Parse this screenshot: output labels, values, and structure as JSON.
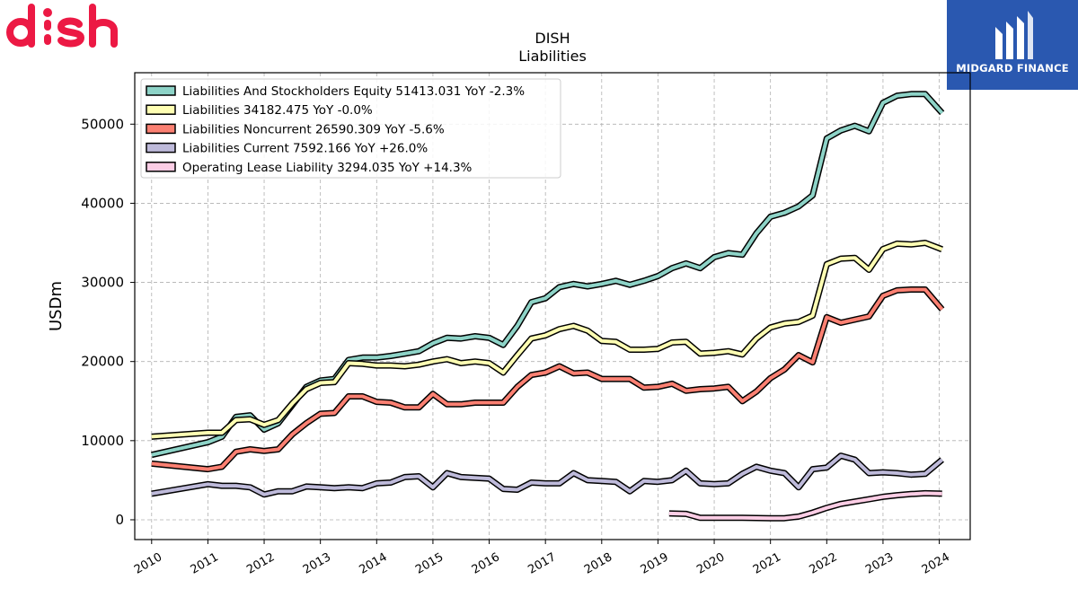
{
  "logo": {
    "name": "dish",
    "color": "#ec1944"
  },
  "brand": {
    "text": "MIDGARD FINANCE",
    "color": "#2a58b0"
  },
  "chart_data": {
    "type": "line",
    "title": "DISH",
    "subtitle": "Liabilities",
    "ylabel": "USDm",
    "xlabel": "",
    "xlim": [
      2009.7,
      2024.55
    ],
    "ylim": [
      -2500,
      56500
    ],
    "yticks": [
      0,
      10000,
      20000,
      30000,
      40000,
      50000
    ],
    "ytick_labels": [
      "0",
      "10000",
      "20000",
      "30000",
      "40000",
      "50000"
    ],
    "xticks": [
      2010,
      2011,
      2012,
      2013,
      2014,
      2015,
      2016,
      2017,
      2018,
      2019,
      2020,
      2021,
      2022,
      2023,
      2024
    ],
    "xtick_labels": [
      "2010",
      "2011",
      "2012",
      "2013",
      "2014",
      "2015",
      "2016",
      "2017",
      "2018",
      "2019",
      "2020",
      "2021",
      "2022",
      "2023",
      "2024"
    ],
    "grid": true,
    "legend_position": "top-left",
    "series": [
      {
        "name": "Liabilities And Stockholders Equity",
        "legend": "Liabilities And Stockholders Equity  51413.031 YoY -2.3%",
        "color": "#8dd3c7",
        "points": [
          [
            2010.0,
            8200
          ],
          [
            2011.0,
            9800
          ],
          [
            2011.25,
            10500
          ],
          [
            2011.5,
            13000
          ],
          [
            2011.75,
            13200
          ],
          [
            2012.0,
            11400
          ],
          [
            2012.25,
            12200
          ],
          [
            2012.5,
            14500
          ],
          [
            2012.75,
            16800
          ],
          [
            2013.0,
            17600
          ],
          [
            2013.25,
            17800
          ],
          [
            2013.5,
            20200
          ],
          [
            2013.75,
            20500
          ],
          [
            2014.0,
            20500
          ],
          [
            2014.25,
            20700
          ],
          [
            2014.5,
            21000
          ],
          [
            2014.75,
            21300
          ],
          [
            2015.0,
            22300
          ],
          [
            2015.25,
            23000
          ],
          [
            2015.5,
            22900
          ],
          [
            2015.75,
            23200
          ],
          [
            2016.0,
            23000
          ],
          [
            2016.25,
            22100
          ],
          [
            2016.5,
            24500
          ],
          [
            2016.75,
            27500
          ],
          [
            2017.0,
            28000
          ],
          [
            2017.25,
            29400
          ],
          [
            2017.5,
            29800
          ],
          [
            2017.75,
            29500
          ],
          [
            2018.0,
            29800
          ],
          [
            2018.25,
            30200
          ],
          [
            2018.5,
            29700
          ],
          [
            2018.75,
            30200
          ],
          [
            2019.0,
            30800
          ],
          [
            2019.25,
            31800
          ],
          [
            2019.5,
            32400
          ],
          [
            2019.75,
            31800
          ],
          [
            2020.0,
            33200
          ],
          [
            2020.25,
            33700
          ],
          [
            2020.5,
            33500
          ],
          [
            2020.75,
            36200
          ],
          [
            2021.0,
            38300
          ],
          [
            2021.25,
            38800
          ],
          [
            2021.5,
            39600
          ],
          [
            2021.75,
            41000
          ],
          [
            2022.0,
            48200
          ],
          [
            2022.25,
            49200
          ],
          [
            2022.5,
            49800
          ],
          [
            2022.75,
            49100
          ],
          [
            2023.0,
            52700
          ],
          [
            2023.25,
            53600
          ],
          [
            2023.5,
            53800
          ],
          [
            2023.75,
            53800
          ],
          [
            2024.05,
            51413
          ]
        ]
      },
      {
        "name": "Liabilities",
        "legend": "Liabilities  34182.475 YoY -0.0%",
        "color": "#ffffb3",
        "points": [
          [
            2010.0,
            10500
          ],
          [
            2011.0,
            11000
          ],
          [
            2011.25,
            11000
          ],
          [
            2011.5,
            12600
          ],
          [
            2011.75,
            12700
          ],
          [
            2012.0,
            12000
          ],
          [
            2012.25,
            12600
          ],
          [
            2012.5,
            14700
          ],
          [
            2012.75,
            16500
          ],
          [
            2013.0,
            17300
          ],
          [
            2013.25,
            17400
          ],
          [
            2013.5,
            19800
          ],
          [
            2013.75,
            19700
          ],
          [
            2014.0,
            19500
          ],
          [
            2014.25,
            19500
          ],
          [
            2014.5,
            19400
          ],
          [
            2014.75,
            19600
          ],
          [
            2015.0,
            20000
          ],
          [
            2015.25,
            20300
          ],
          [
            2015.5,
            19800
          ],
          [
            2015.75,
            20000
          ],
          [
            2016.0,
            19800
          ],
          [
            2016.25,
            18600
          ],
          [
            2016.5,
            20800
          ],
          [
            2016.75,
            22900
          ],
          [
            2017.0,
            23300
          ],
          [
            2017.25,
            24100
          ],
          [
            2017.5,
            24500
          ],
          [
            2017.75,
            23900
          ],
          [
            2018.0,
            22600
          ],
          [
            2018.25,
            22500
          ],
          [
            2018.5,
            21500
          ],
          [
            2018.75,
            21500
          ],
          [
            2019.0,
            21600
          ],
          [
            2019.25,
            22400
          ],
          [
            2019.5,
            22500
          ],
          [
            2019.75,
            21000
          ],
          [
            2020.0,
            21100
          ],
          [
            2020.25,
            21300
          ],
          [
            2020.5,
            20900
          ],
          [
            2020.75,
            22900
          ],
          [
            2021.0,
            24300
          ],
          [
            2021.25,
            24800
          ],
          [
            2021.5,
            25000
          ],
          [
            2021.75,
            25800
          ],
          [
            2022.0,
            32300
          ],
          [
            2022.25,
            33000
          ],
          [
            2022.5,
            33100
          ],
          [
            2022.75,
            31600
          ],
          [
            2023.0,
            34200
          ],
          [
            2023.25,
            34900
          ],
          [
            2023.5,
            34800
          ],
          [
            2023.75,
            35000
          ],
          [
            2024.05,
            34182
          ]
        ]
      },
      {
        "name": "Liabilities Noncurrent",
        "legend": "Liabilities Noncurrent  26590.309 YoY -5.6%",
        "color": "#fb8072",
        "points": [
          [
            2010.0,
            7100
          ],
          [
            2011.0,
            6400
          ],
          [
            2011.25,
            6700
          ],
          [
            2011.5,
            8600
          ],
          [
            2011.75,
            8900
          ],
          [
            2012.0,
            8700
          ],
          [
            2012.25,
            8900
          ],
          [
            2012.5,
            10800
          ],
          [
            2012.75,
            12200
          ],
          [
            2013.0,
            13400
          ],
          [
            2013.25,
            13500
          ],
          [
            2013.5,
            15600
          ],
          [
            2013.75,
            15600
          ],
          [
            2014.0,
            14900
          ],
          [
            2014.25,
            14800
          ],
          [
            2014.5,
            14200
          ],
          [
            2014.75,
            14200
          ],
          [
            2015.0,
            15900
          ],
          [
            2015.25,
            14600
          ],
          [
            2015.5,
            14600
          ],
          [
            2015.75,
            14800
          ],
          [
            2016.0,
            14800
          ],
          [
            2016.25,
            14800
          ],
          [
            2016.5,
            16800
          ],
          [
            2016.75,
            18300
          ],
          [
            2017.0,
            18600
          ],
          [
            2017.25,
            19400
          ],
          [
            2017.5,
            18500
          ],
          [
            2017.75,
            18600
          ],
          [
            2018.0,
            17800
          ],
          [
            2018.25,
            17800
          ],
          [
            2018.5,
            17800
          ],
          [
            2018.75,
            16700
          ],
          [
            2019.0,
            16800
          ],
          [
            2019.25,
            17200
          ],
          [
            2019.5,
            16300
          ],
          [
            2019.75,
            16500
          ],
          [
            2020.0,
            16600
          ],
          [
            2020.25,
            16800
          ],
          [
            2020.5,
            15000
          ],
          [
            2020.75,
            16200
          ],
          [
            2021.0,
            17900
          ],
          [
            2021.25,
            19000
          ],
          [
            2021.5,
            20800
          ],
          [
            2021.75,
            19900
          ],
          [
            2022.0,
            25600
          ],
          [
            2022.25,
            24900
          ],
          [
            2022.5,
            25300
          ],
          [
            2022.75,
            25700
          ],
          [
            2023.0,
            28300
          ],
          [
            2023.25,
            29000
          ],
          [
            2023.5,
            29100
          ],
          [
            2023.75,
            29100
          ],
          [
            2024.05,
            26590
          ]
        ]
      },
      {
        "name": "Liabilities Current",
        "legend": "Liabilities Current  7592.166 YoY +26.0%",
        "color": "#bebada",
        "points": [
          [
            2010.0,
            3300
          ],
          [
            2011.0,
            4500
          ],
          [
            2011.25,
            4300
          ],
          [
            2011.5,
            4300
          ],
          [
            2011.75,
            4100
          ],
          [
            2012.0,
            3200
          ],
          [
            2012.25,
            3600
          ],
          [
            2012.5,
            3600
          ],
          [
            2012.75,
            4200
          ],
          [
            2013.0,
            4100
          ],
          [
            2013.25,
            4000
          ],
          [
            2013.5,
            4100
          ],
          [
            2013.75,
            4000
          ],
          [
            2014.0,
            4600
          ],
          [
            2014.25,
            4700
          ],
          [
            2014.5,
            5400
          ],
          [
            2014.75,
            5500
          ],
          [
            2015.0,
            4100
          ],
          [
            2015.25,
            5900
          ],
          [
            2015.5,
            5400
          ],
          [
            2015.75,
            5300
          ],
          [
            2016.0,
            5200
          ],
          [
            2016.25,
            3900
          ],
          [
            2016.5,
            3800
          ],
          [
            2016.75,
            4700
          ],
          [
            2017.0,
            4600
          ],
          [
            2017.25,
            4600
          ],
          [
            2017.5,
            5900
          ],
          [
            2017.75,
            5000
          ],
          [
            2018.0,
            4900
          ],
          [
            2018.25,
            4800
          ],
          [
            2018.5,
            3600
          ],
          [
            2018.75,
            4900
          ],
          [
            2019.0,
            4800
          ],
          [
            2019.25,
            5000
          ],
          [
            2019.5,
            6200
          ],
          [
            2019.75,
            4600
          ],
          [
            2020.0,
            4500
          ],
          [
            2020.25,
            4600
          ],
          [
            2020.5,
            5800
          ],
          [
            2020.75,
            6700
          ],
          [
            2021.0,
            6200
          ],
          [
            2021.25,
            5900
          ],
          [
            2021.5,
            4100
          ],
          [
            2021.75,
            6400
          ],
          [
            2022.0,
            6600
          ],
          [
            2022.25,
            8100
          ],
          [
            2022.5,
            7600
          ],
          [
            2022.75,
            5900
          ],
          [
            2023.0,
            6000
          ],
          [
            2023.25,
            5900
          ],
          [
            2023.5,
            5700
          ],
          [
            2023.75,
            5800
          ],
          [
            2024.05,
            7592
          ]
        ]
      },
      {
        "name": "Operating Lease Liability",
        "legend": "Operating Lease Liability  3294.035 YoY +14.3%",
        "color": "#fccde5",
        "points": [
          [
            2019.2,
            800
          ],
          [
            2019.5,
            750
          ],
          [
            2019.75,
            250
          ],
          [
            2020.0,
            250
          ],
          [
            2020.5,
            250
          ],
          [
            2021.0,
            200
          ],
          [
            2021.25,
            200
          ],
          [
            2021.5,
            400
          ],
          [
            2021.75,
            900
          ],
          [
            2022.0,
            1500
          ],
          [
            2022.25,
            2000
          ],
          [
            2022.5,
            2300
          ],
          [
            2022.75,
            2600
          ],
          [
            2023.0,
            2900
          ],
          [
            2023.25,
            3100
          ],
          [
            2023.5,
            3250
          ],
          [
            2023.75,
            3350
          ],
          [
            2024.05,
            3294
          ]
        ]
      }
    ]
  }
}
